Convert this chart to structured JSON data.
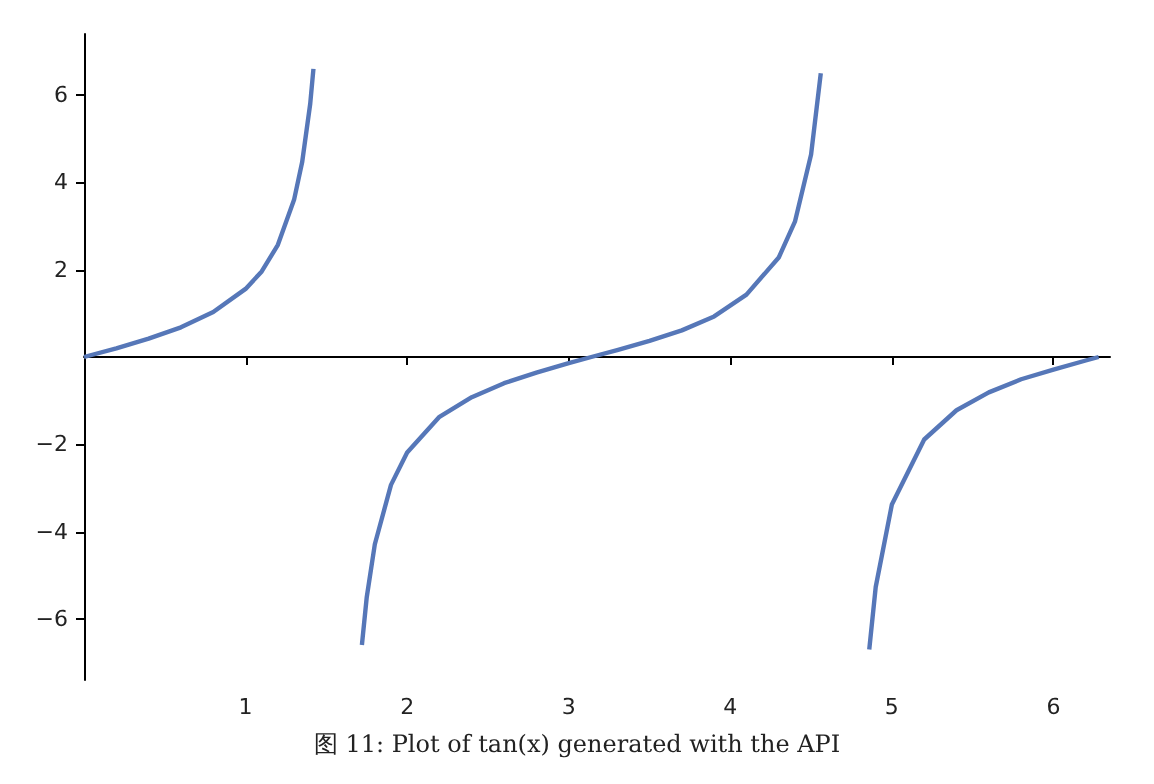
{
  "chart_data": {
    "type": "line",
    "x": [
      0,
      0.2,
      0.4,
      0.6,
      0.8,
      1.0,
      1.1,
      1.2,
      1.3,
      1.35,
      1.4,
      1.42,
      1.5708,
      1.72,
      1.75,
      1.8,
      1.9,
      2.0,
      2.2,
      2.4,
      2.6,
      2.8,
      3.0,
      3.14,
      3.3,
      3.5,
      3.7,
      3.9,
      4.1,
      4.3,
      4.4,
      4.5,
      4.56,
      4.712,
      4.86,
      4.9,
      5.0,
      5.2,
      5.4,
      5.6,
      5.8,
      6.0,
      6.2,
      6.28
    ],
    "series": [
      {
        "color": "#5677b8",
        "values": [
          0,
          0.2,
          0.42,
          0.68,
          1.03,
          1.56,
          1.96,
          2.57,
          3.6,
          4.46,
          5.8,
          6.6,
          null,
          -6.6,
          -5.5,
          -4.29,
          -2.93,
          -2.19,
          -1.37,
          -0.92,
          -0.6,
          -0.36,
          -0.14,
          0,
          0.16,
          0.37,
          0.61,
          0.93,
          1.43,
          2.28,
          3.1,
          4.64,
          6.5,
          null,
          -6.7,
          -5.27,
          -3.38,
          -1.89,
          -1.22,
          -0.81,
          -0.51,
          -0.29,
          -0.08,
          0
        ]
      }
    ],
    "xlim": [
      0,
      6.35
    ],
    "ylim": [
      -7.4,
      7.4
    ],
    "xticks": [
      1,
      2,
      3,
      4,
      5,
      6
    ],
    "yticks": [
      -6,
      -4,
      -2,
      2,
      4,
      6
    ],
    "grid": false,
    "marker": "none",
    "line_style": "solid",
    "annotations": [
      "图 11: Plot of tan(x) generated with the API"
    ]
  }
}
